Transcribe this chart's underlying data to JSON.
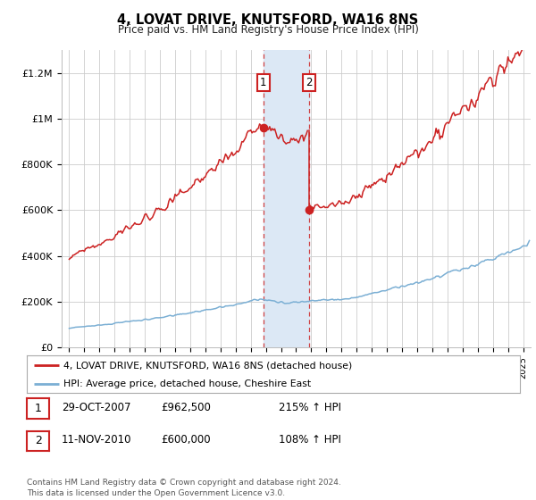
{
  "title": "4, LOVAT DRIVE, KNUTSFORD, WA16 8NS",
  "subtitle": "Price paid vs. HM Land Registry's House Price Index (HPI)",
  "ylim": [
    0,
    1300000
  ],
  "yticks": [
    0,
    200000,
    400000,
    600000,
    800000,
    1000000,
    1200000
  ],
  "ytick_labels": [
    "£0",
    "£200K",
    "£400K",
    "£600K",
    "£800K",
    "£1M",
    "£1.2M"
  ],
  "hpi_color": "#7bafd4",
  "price_color": "#cc2222",
  "marker1_date": 2007.83,
  "marker1_price": 962500,
  "marker2_date": 2010.87,
  "marker2_price": 600000,
  "legend_line1": "4, LOVAT DRIVE, KNUTSFORD, WA16 8NS (detached house)",
  "legend_line2": "HPI: Average price, detached house, Cheshire East",
  "table_row1": [
    "1",
    "29-OCT-2007",
    "£962,500",
    "215% ↑ HPI"
  ],
  "table_row2": [
    "2",
    "11-NOV-2010",
    "£600,000",
    "108% ↑ HPI"
  ],
  "footnote": "Contains HM Land Registry data © Crown copyright and database right 2024.\nThis data is licensed under the Open Government Licence v3.0.",
  "background_color": "#ffffff",
  "grid_color": "#cccccc",
  "shade_color": "#dce8f5",
  "xmin": 1994.5,
  "xmax": 2025.5
}
